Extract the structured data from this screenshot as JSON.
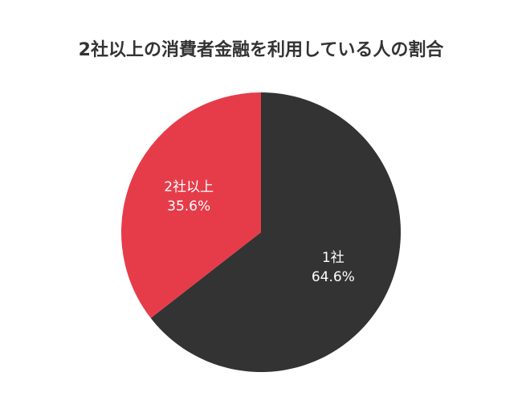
{
  "chart_data": {
    "type": "pie",
    "title": "2社以上の消費者金融を利用している人の割合",
    "categories": [
      "1社",
      "2社以上"
    ],
    "values": [
      64.6,
      35.6
    ],
    "value_labels": [
      "64.6%",
      "35.6%"
    ],
    "colors": [
      "#333333",
      "#e63c4a"
    ]
  }
}
